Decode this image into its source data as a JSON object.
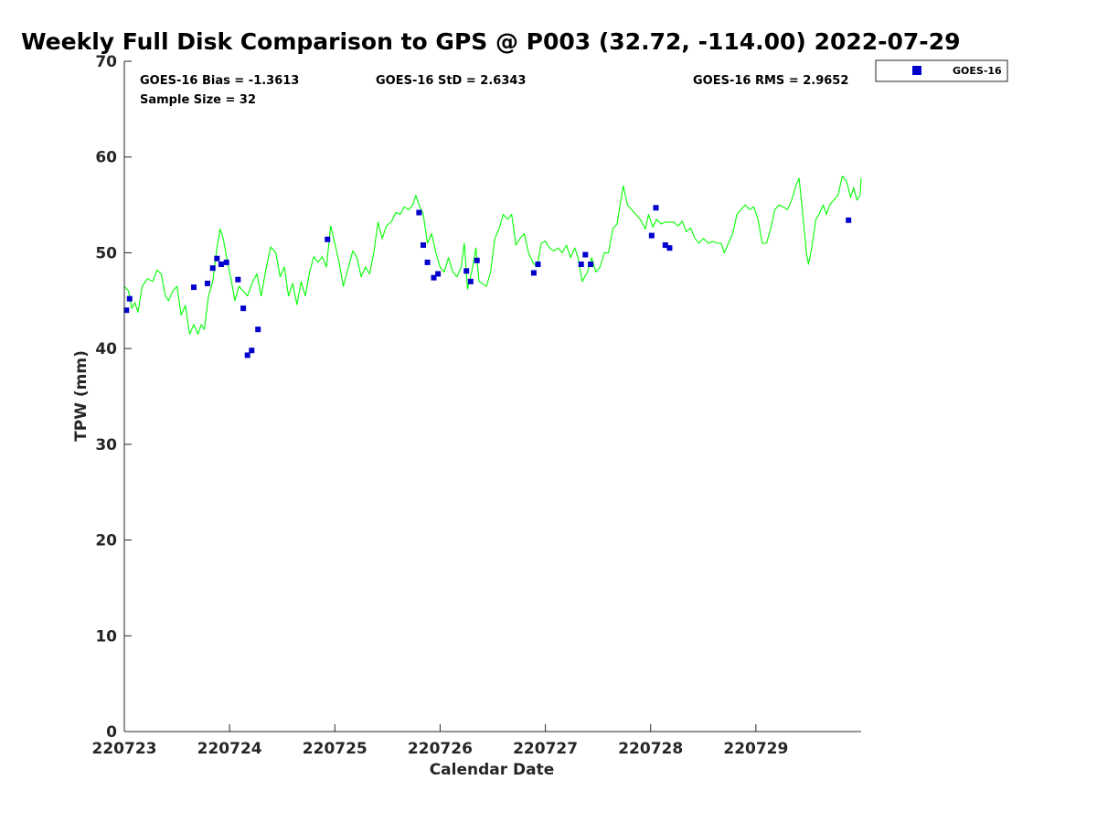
{
  "chart_data": {
    "type": "scatter",
    "title": "Weekly Full Disk Comparison to GPS @ P003 (32.72, -114.00) 2022-07-29",
    "xlabel": "Calendar Date",
    "ylabel": "TPW (mm)",
    "xlim": [
      0,
      7
    ],
    "ylim": [
      0,
      70
    ],
    "x_ticks": [
      0,
      1,
      2,
      3,
      4,
      5,
      6
    ],
    "x_tick_labels": [
      "220723",
      "220724",
      "220725",
      "220726",
      "220727",
      "220728",
      "220729"
    ],
    "y_ticks": [
      0,
      10,
      20,
      30,
      40,
      50,
      60,
      70
    ],
    "y_tick_labels": [
      "0",
      "10",
      "20",
      "30",
      "40",
      "50",
      "60",
      "70"
    ],
    "x_unit": "days from 220723",
    "grid": false,
    "legend_position": "top-right, outside plot",
    "stats": {
      "bias": "GOES-16 Bias = -1.3613",
      "std": "GOES-16 StD = 2.6343",
      "rms": "GOES-16 RMS = 2.9652",
      "sample": "Sample Size = 32"
    },
    "series": [
      {
        "name": "GOES-16",
        "type": "scatter",
        "marker": "square",
        "color": "#0000cc",
        "points": [
          [
            0.02,
            44.0
          ],
          [
            0.05,
            45.2
          ],
          [
            0.66,
            46.4
          ],
          [
            0.79,
            46.8
          ],
          [
            0.84,
            48.4
          ],
          [
            0.88,
            49.4
          ],
          [
            0.92,
            48.8
          ],
          [
            0.97,
            49.0
          ],
          [
            1.08,
            47.2
          ],
          [
            1.13,
            44.2
          ],
          [
            1.17,
            39.3
          ],
          [
            1.21,
            39.8
          ],
          [
            1.27,
            42.0
          ],
          [
            1.93,
            51.4
          ],
          [
            2.8,
            54.2
          ],
          [
            2.84,
            50.8
          ],
          [
            2.88,
            49.0
          ],
          [
            2.94,
            47.4
          ],
          [
            2.98,
            47.8
          ],
          [
            3.25,
            48.1
          ],
          [
            3.29,
            47.0
          ],
          [
            3.35,
            49.2
          ],
          [
            3.89,
            47.9
          ],
          [
            3.93,
            48.8
          ],
          [
            4.34,
            48.8
          ],
          [
            4.38,
            49.8
          ],
          [
            4.43,
            48.8
          ],
          [
            5.01,
            51.8
          ],
          [
            5.05,
            54.7
          ],
          [
            5.14,
            50.8
          ],
          [
            5.18,
            50.5
          ],
          [
            6.88,
            53.4
          ]
        ]
      },
      {
        "type": "line",
        "color": "#00ff00",
        "points": [
          [
            0.0,
            46.5
          ],
          [
            0.04,
            46.0
          ],
          [
            0.07,
            44.2
          ],
          [
            0.1,
            44.8
          ],
          [
            0.13,
            43.8
          ],
          [
            0.17,
            46.5
          ],
          [
            0.22,
            47.3
          ],
          [
            0.27,
            47.0
          ],
          [
            0.31,
            48.2
          ],
          [
            0.35,
            47.8
          ],
          [
            0.39,
            45.5
          ],
          [
            0.42,
            45.0
          ],
          [
            0.46,
            46.0
          ],
          [
            0.5,
            46.5
          ],
          [
            0.54,
            43.5
          ],
          [
            0.58,
            44.5
          ],
          [
            0.62,
            41.5
          ],
          [
            0.66,
            42.5
          ],
          [
            0.7,
            41.5
          ],
          [
            0.73,
            42.5
          ],
          [
            0.76,
            42.0
          ],
          [
            0.8,
            45.5
          ],
          [
            0.84,
            47.0
          ],
          [
            0.88,
            50.5
          ],
          [
            0.91,
            52.5
          ],
          [
            0.94,
            51.5
          ],
          [
            0.98,
            49.0
          ],
          [
            1.01,
            47.5
          ],
          [
            1.05,
            45.0
          ],
          [
            1.09,
            46.5
          ],
          [
            1.13,
            46.0
          ],
          [
            1.17,
            45.5
          ],
          [
            1.22,
            47.0
          ],
          [
            1.26,
            47.8
          ],
          [
            1.3,
            45.5
          ],
          [
            1.35,
            48.5
          ],
          [
            1.39,
            50.6
          ],
          [
            1.44,
            50.0
          ],
          [
            1.48,
            47.5
          ],
          [
            1.52,
            48.5
          ],
          [
            1.56,
            45.5
          ],
          [
            1.6,
            46.8
          ],
          [
            1.64,
            44.6
          ],
          [
            1.68,
            47.0
          ],
          [
            1.72,
            45.5
          ],
          [
            1.76,
            48.0
          ],
          [
            1.8,
            49.6
          ],
          [
            1.84,
            49.0
          ],
          [
            1.88,
            49.6
          ],
          [
            1.92,
            48.5
          ],
          [
            1.96,
            52.8
          ],
          [
            2.0,
            51.0
          ],
          [
            2.04,
            49.0
          ],
          [
            2.08,
            46.5
          ],
          [
            2.13,
            48.5
          ],
          [
            2.17,
            50.2
          ],
          [
            2.21,
            49.5
          ],
          [
            2.25,
            47.5
          ],
          [
            2.29,
            48.5
          ],
          [
            2.33,
            47.8
          ],
          [
            2.37,
            50.0
          ],
          [
            2.41,
            53.2
          ],
          [
            2.45,
            51.5
          ],
          [
            2.49,
            52.8
          ],
          [
            2.54,
            53.3
          ],
          [
            2.58,
            54.2
          ],
          [
            2.62,
            54.0
          ],
          [
            2.66,
            54.8
          ],
          [
            2.7,
            54.5
          ],
          [
            2.74,
            55.0
          ],
          [
            2.77,
            56.0
          ],
          [
            2.8,
            55.0
          ],
          [
            2.84,
            54.0
          ],
          [
            2.88,
            51.0
          ],
          [
            2.92,
            52.0
          ],
          [
            2.96,
            50.0
          ],
          [
            3.0,
            48.5
          ],
          [
            3.04,
            48.0
          ],
          [
            3.08,
            49.5
          ],
          [
            3.12,
            48.0
          ],
          [
            3.16,
            47.5
          ],
          [
            3.2,
            48.5
          ],
          [
            3.23,
            51.0
          ],
          [
            3.26,
            46.2
          ],
          [
            3.3,
            48.0
          ],
          [
            3.34,
            50.5
          ],
          [
            3.37,
            47.0
          ],
          [
            3.4,
            46.8
          ],
          [
            3.44,
            46.5
          ],
          [
            3.48,
            48.0
          ],
          [
            3.52,
            51.5
          ],
          [
            3.56,
            52.5
          ],
          [
            3.6,
            54.0
          ],
          [
            3.64,
            53.5
          ],
          [
            3.68,
            54.0
          ],
          [
            3.72,
            50.8
          ],
          [
            3.76,
            51.5
          ],
          [
            3.8,
            52.0
          ],
          [
            3.84,
            50.0
          ],
          [
            3.88,
            49.0
          ],
          [
            3.92,
            48.5
          ],
          [
            3.96,
            51.0
          ],
          [
            4.0,
            51.2
          ],
          [
            4.04,
            50.5
          ],
          [
            4.08,
            50.2
          ],
          [
            4.12,
            50.5
          ],
          [
            4.16,
            50.0
          ],
          [
            4.2,
            50.8
          ],
          [
            4.24,
            49.5
          ],
          [
            4.28,
            50.5
          ],
          [
            4.31,
            49.5
          ],
          [
            4.35,
            47.0
          ],
          [
            4.4,
            48.0
          ],
          [
            4.44,
            49.5
          ],
          [
            4.48,
            48.0
          ],
          [
            4.52,
            48.5
          ],
          [
            4.56,
            50.0
          ],
          [
            4.6,
            50.0
          ],
          [
            4.64,
            52.5
          ],
          [
            4.68,
            53.0
          ],
          [
            4.71,
            55.0
          ],
          [
            4.74,
            57.0
          ],
          [
            4.78,
            55.0
          ],
          [
            4.82,
            54.5
          ],
          [
            4.86,
            54.0
          ],
          [
            4.9,
            53.5
          ],
          [
            4.95,
            52.5
          ],
          [
            4.98,
            54.0
          ],
          [
            5.02,
            52.7
          ],
          [
            5.06,
            53.5
          ],
          [
            5.1,
            53.0
          ],
          [
            5.14,
            53.2
          ],
          [
            5.18,
            53.2
          ],
          [
            5.22,
            53.2
          ],
          [
            5.26,
            52.8
          ],
          [
            5.3,
            53.3
          ],
          [
            5.34,
            52.2
          ],
          [
            5.38,
            52.6
          ],
          [
            5.42,
            51.5
          ],
          [
            5.46,
            51.0
          ],
          [
            5.5,
            51.5
          ],
          [
            5.55,
            51.0
          ],
          [
            5.59,
            51.2
          ],
          [
            5.63,
            51.0
          ],
          [
            5.67,
            51.0
          ],
          [
            5.7,
            50.0
          ],
          [
            5.74,
            51.0
          ],
          [
            5.78,
            52.0
          ],
          [
            5.82,
            54.0
          ],
          [
            5.86,
            54.5
          ],
          [
            5.9,
            55.0
          ],
          [
            5.94,
            54.5
          ],
          [
            5.98,
            54.8
          ],
          [
            6.02,
            53.5
          ],
          [
            6.06,
            51.0
          ],
          [
            6.1,
            51.0
          ],
          [
            6.14,
            52.5
          ],
          [
            6.18,
            54.5
          ],
          [
            6.22,
            55.0
          ],
          [
            6.26,
            54.8
          ],
          [
            6.3,
            54.5
          ],
          [
            6.34,
            55.5
          ],
          [
            6.38,
            57.0
          ],
          [
            6.41,
            57.8
          ],
          [
            6.45,
            53.5
          ],
          [
            6.48,
            50.0
          ],
          [
            6.5,
            48.8
          ],
          [
            6.53,
            50.5
          ],
          [
            6.57,
            53.5
          ],
          [
            6.6,
            54.0
          ],
          [
            6.64,
            55.0
          ],
          [
            6.67,
            54.0
          ],
          [
            6.7,
            55.0
          ],
          [
            6.74,
            55.5
          ],
          [
            6.78,
            56.0
          ],
          [
            6.82,
            58.0
          ],
          [
            6.86,
            57.5
          ],
          [
            6.9,
            55.8
          ],
          [
            6.93,
            56.8
          ],
          [
            6.96,
            55.5
          ],
          [
            6.99,
            56.0
          ],
          [
            7.0,
            57.8
          ]
        ]
      }
    ]
  }
}
